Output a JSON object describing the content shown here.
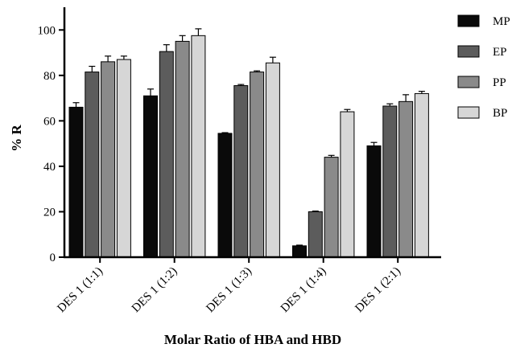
{
  "chart_data": {
    "type": "bar",
    "title": "",
    "xlabel": "Molar Ratio of HBA and HBD",
    "ylabel": "% R",
    "ylim": [
      0,
      110
    ],
    "yticks": [
      0,
      20,
      40,
      60,
      80,
      100
    ],
    "grid": false,
    "legend_position": "top-right",
    "categories": [
      "DES 1 (1:1)",
      "DES 1 (1:2)",
      "DES 1 (1:3)",
      "DES 1 (1:4)",
      "DES 1 (2:1)"
    ],
    "series": [
      {
        "name": "MP",
        "color": "#0a0a0a",
        "values": [
          66,
          71,
          54.5,
          5,
          49
        ],
        "errors": [
          2,
          3,
          0.3,
          0.3,
          1.5
        ]
      },
      {
        "name": "EP",
        "color": "#5c5c5c",
        "values": [
          81.5,
          90.5,
          75.5,
          20,
          66.5
        ],
        "errors": [
          2.5,
          3,
          0.5,
          0.3,
          1
        ]
      },
      {
        "name": "PP",
        "color": "#8a8a8a",
        "values": [
          86,
          95,
          81.5,
          44,
          68.5
        ],
        "errors": [
          2.5,
          2.5,
          0.5,
          0.8,
          3
        ]
      },
      {
        "name": "BP",
        "color": "#d6d6d6",
        "values": [
          87,
          97.5,
          85.5,
          64,
          72
        ],
        "errors": [
          1.5,
          3,
          2.5,
          1,
          1
        ]
      }
    ]
  }
}
